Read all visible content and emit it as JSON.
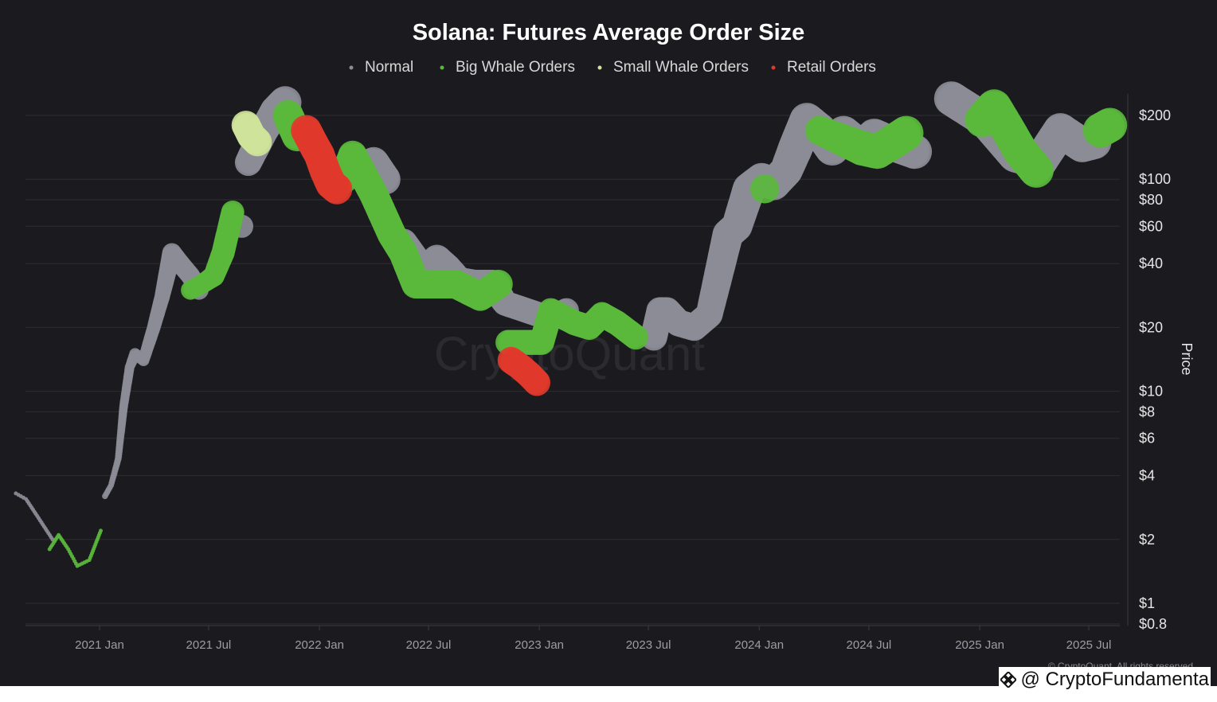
{
  "chart_data": {
    "type": "scatter",
    "title": "Solana: Futures Average Order Size",
    "ylabel": "Price",
    "yscale": "log",
    "ylim": [
      0.8,
      250
    ],
    "legend_position": "top-center",
    "y_ticks": [
      {
        "value": 200,
        "label": "$200"
      },
      {
        "value": 100,
        "label": "$100"
      },
      {
        "value": 80,
        "label": "$80"
      },
      {
        "value": 60,
        "label": "$60"
      },
      {
        "value": 40,
        "label": "$40"
      },
      {
        "value": 20,
        "label": "$20"
      },
      {
        "value": 10,
        "label": "$10"
      },
      {
        "value": 8,
        "label": "$8"
      },
      {
        "value": 6,
        "label": "$6"
      },
      {
        "value": 4,
        "label": "$4"
      },
      {
        "value": 2,
        "label": "$2"
      },
      {
        "value": 1,
        "label": "$1"
      },
      {
        "value": 0.8,
        "label": "$0.8"
      }
    ],
    "x_ticks": [
      "2021 Jan",
      "2021 Jul",
      "2022 Jan",
      "2022 Jul",
      "2023 Jan",
      "2023 Jul",
      "2024 Jan",
      "2024 Jul",
      "2025 Jan",
      "2025 Jul"
    ],
    "x_tick_dates": [
      "2021-01-01",
      "2021-07-01",
      "2022-01-01",
      "2022-07-01",
      "2023-01-01",
      "2023-07-01",
      "2024-01-01",
      "2024-07-01",
      "2025-01-01",
      "2025-07-01"
    ],
    "series": [
      {
        "name": "Normal",
        "color": "#8c8c97",
        "points": [
          [
            "2020-08-15",
            3.3,
            1
          ],
          [
            "2020-09-01",
            3.1,
            1
          ],
          [
            "2020-09-15",
            2.7,
            1
          ],
          [
            "2020-10-01",
            2.3,
            1
          ],
          [
            "2020-10-15",
            2.0,
            1
          ],
          [
            "2021-01-10",
            3.2,
            1.2
          ],
          [
            "2021-01-20",
            3.6,
            1.2
          ],
          [
            "2021-02-01",
            4.8,
            1.3
          ],
          [
            "2021-02-10",
            8.5,
            1.5
          ],
          [
            "2021-02-20",
            13,
            1.6
          ],
          [
            "2021-03-01",
            15,
            1.8
          ],
          [
            "2021-03-15",
            14,
            1.8
          ],
          [
            "2021-04-01",
            20,
            2
          ],
          [
            "2021-04-15",
            28,
            2.2
          ],
          [
            "2021-05-01",
            45,
            2.6
          ],
          [
            "2021-05-15",
            40,
            2.6
          ],
          [
            "2021-06-01",
            35,
            2.6
          ],
          [
            "2021-06-15",
            30,
            2.6
          ],
          [
            "2021-08-25",
            60,
            3
          ],
          [
            "2021-09-05",
            120,
            3.4
          ],
          [
            "2021-10-01",
            170,
            3.6
          ],
          [
            "2021-10-20",
            210,
            3.8
          ],
          [
            "2021-11-05",
            230,
            4
          ],
          [
            "2022-03-05",
            110,
            3.8
          ],
          [
            "2022-04-01",
            120,
            3.8
          ],
          [
            "2022-04-20",
            100,
            3.8
          ],
          [
            "2022-05-20",
            50,
            3.6
          ],
          [
            "2022-06-25",
            36,
            3.6
          ],
          [
            "2022-07-15",
            42,
            3.6
          ],
          [
            "2022-08-01",
            38,
            3.6
          ],
          [
            "2022-08-20",
            33,
            3.6
          ],
          [
            "2022-09-15",
            32,
            3.6
          ],
          [
            "2022-10-15",
            32,
            3.6
          ],
          [
            "2022-11-05",
            26,
            3.2
          ],
          [
            "2023-01-20",
            22,
            3.2
          ],
          [
            "2023-02-15",
            24,
            3.2
          ],
          [
            "2023-07-10",
            18,
            3.4
          ],
          [
            "2023-07-20",
            24,
            3.4
          ],
          [
            "2023-08-01",
            24,
            3.4
          ],
          [
            "2023-08-20",
            21,
            3.4
          ],
          [
            "2023-09-15",
            20,
            3.4
          ],
          [
            "2023-10-10",
            23,
            3.4
          ],
          [
            "2023-10-25",
            35,
            3.6
          ],
          [
            "2023-11-10",
            55,
            3.8
          ],
          [
            "2023-11-25",
            60,
            3.8
          ],
          [
            "2023-12-15",
            90,
            4
          ],
          [
            "2024-01-05",
            100,
            4
          ],
          [
            "2024-01-25",
            95,
            4
          ],
          [
            "2024-02-15",
            110,
            4
          ],
          [
            "2024-03-01",
            140,
            4.2
          ],
          [
            "2024-03-20",
            190,
            4.2
          ],
          [
            "2024-04-10",
            170,
            4.2
          ],
          [
            "2024-05-01",
            140,
            4.2
          ],
          [
            "2024-05-20",
            165,
            4.2
          ],
          [
            "2024-06-20",
            140,
            4.2
          ],
          [
            "2024-07-10",
            160,
            4.2
          ],
          [
            "2024-08-01",
            150,
            4.2
          ],
          [
            "2024-09-15",
            135,
            4.2
          ],
          [
            "2024-11-15",
            240,
            4.2
          ],
          [
            "2025-01-10",
            190,
            4.2
          ],
          [
            "2025-03-01",
            130,
            4.2
          ],
          [
            "2025-04-10",
            120,
            4.2
          ],
          [
            "2025-05-15",
            170,
            4.2
          ],
          [
            "2025-06-20",
            145,
            4.2
          ],
          [
            "2025-07-10",
            150,
            4.2
          ]
        ]
      },
      {
        "name": "Big Whale Orders",
        "color": "#5ab83c",
        "points": [
          [
            "2020-10-10",
            1.8,
            1
          ],
          [
            "2020-10-25",
            2.1,
            1
          ],
          [
            "2020-11-10",
            1.8,
            1
          ],
          [
            "2020-11-25",
            1.5,
            1
          ],
          [
            "2020-12-15",
            1.6,
            1
          ],
          [
            "2021-01-03",
            2.2,
            1
          ],
          [
            "2021-06-01",
            30,
            2.6
          ],
          [
            "2021-06-20",
            32,
            2.6
          ],
          [
            "2021-07-10",
            35,
            2.8
          ],
          [
            "2021-07-25",
            45,
            3
          ],
          [
            "2021-08-10",
            70,
            3
          ],
          [
            "2021-11-10",
            200,
            3.8
          ],
          [
            "2021-11-25",
            160,
            3.8
          ],
          [
            "2022-02-10",
            100,
            3.6
          ],
          [
            "2022-02-25",
            130,
            3.6
          ],
          [
            "2022-04-01",
            85,
            3.6
          ],
          [
            "2022-05-01",
            55,
            3.6
          ],
          [
            "2022-05-20",
            45,
            3.6
          ],
          [
            "2022-06-10",
            32,
            3.6
          ],
          [
            "2022-08-15",
            32,
            3.6
          ],
          [
            "2022-09-25",
            28,
            3.6
          ],
          [
            "2022-10-25",
            32,
            3.6
          ],
          [
            "2022-11-10",
            17,
            3.2
          ],
          [
            "2023-01-05",
            17,
            3.2
          ],
          [
            "2023-01-20",
            24,
            3.2
          ],
          [
            "2023-03-01",
            21,
            3.2
          ],
          [
            "2023-03-25",
            20,
            3.2
          ],
          [
            "2023-04-15",
            23,
            3.2
          ],
          [
            "2023-05-10",
            21,
            3.2
          ],
          [
            "2023-06-10",
            18,
            3.2
          ],
          [
            "2024-01-10",
            90,
            3.6
          ],
          [
            "2024-04-10",
            170,
            3.6
          ],
          [
            "2024-06-20",
            140,
            4.2
          ],
          [
            "2024-07-15",
            135,
            4.2
          ],
          [
            "2024-08-10",
            150,
            4.2
          ],
          [
            "2024-09-01",
            165,
            4.2
          ],
          [
            "2025-01-05",
            190,
            4.2
          ],
          [
            "2025-01-25",
            220,
            4.2
          ],
          [
            "2025-02-15",
            175,
            4.2
          ],
          [
            "2025-03-10",
            135,
            4.2
          ],
          [
            "2025-04-05",
            110,
            4.2
          ],
          [
            "2025-07-20",
            170,
            4.2
          ],
          [
            "2025-08-05",
            180,
            4.2
          ]
        ]
      },
      {
        "name": "Small Whale Orders",
        "color": "#cfe39a",
        "points": [
          [
            "2021-09-01",
            180,
            3.6
          ],
          [
            "2021-09-10",
            160,
            3.6
          ],
          [
            "2021-09-20",
            150,
            3.6
          ]
        ]
      },
      {
        "name": "Retail Orders",
        "color": "#e0392d",
        "points": [
          [
            "2021-12-10",
            170,
            3.8
          ],
          [
            "2021-12-20",
            150,
            3.8
          ],
          [
            "2022-01-01",
            130,
            3.8
          ],
          [
            "2022-01-10",
            110,
            3.8
          ],
          [
            "2022-01-20",
            95,
            3.8
          ],
          [
            "2022-01-30",
            90,
            3.8
          ],
          [
            "2022-11-15",
            14,
            3.4
          ],
          [
            "2022-12-01",
            13,
            3.4
          ],
          [
            "2022-12-15",
            12,
            3.4
          ],
          [
            "2022-12-28",
            11,
            3.4
          ]
        ]
      }
    ]
  },
  "watermark": "CryptoQuant",
  "copyright": "© CryptoQuant. All rights reserved",
  "handle": "@ CryptoFundamenta",
  "colors": {
    "background": "#1b1b1f",
    "grid": "#2c2c33"
  }
}
